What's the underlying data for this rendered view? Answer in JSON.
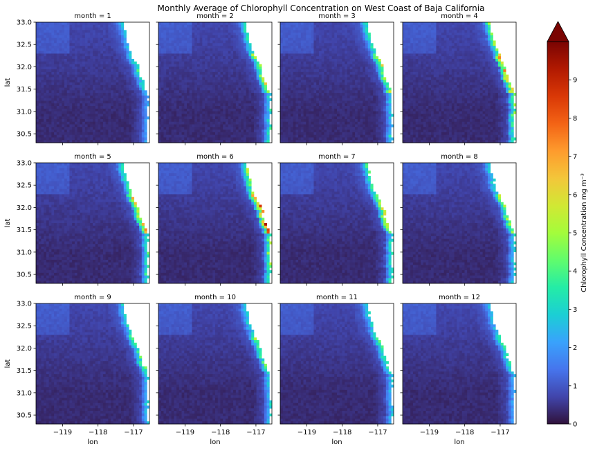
{
  "figure": {
    "title": "Monthly Average of Chlorophyll Concentration on West Coast of Baja California"
  },
  "colors": {
    "ocean_low": "#30123b",
    "land": "#ffffff",
    "colormap": [
      "#30123b",
      "#4145ab",
      "#4675ed",
      "#39a2fc",
      "#1bcfd4",
      "#24eca6",
      "#61fc6c",
      "#a4fc3b",
      "#d1e834",
      "#f3c63a",
      "#fe9b2d",
      "#f36315",
      "#d93806",
      "#b11901",
      "#7a0402"
    ]
  },
  "chart_data": {
    "type": "heatmap",
    "title": "Monthly Average of Chlorophyll Concentration on West Coast of Baja California",
    "xlabel": "lon",
    "ylabel": "lat",
    "xlim": [
      -119.75,
      -116.55
    ],
    "ylim": [
      30.3,
      33.0
    ],
    "x_ticks": [
      -119,
      -118,
      -117
    ],
    "x_tick_labels": [
      "−119",
      "−118",
      "−117"
    ],
    "y_ticks": [
      30.5,
      31.0,
      31.5,
      32.0,
      32.5,
      33.0
    ],
    "y_tick_labels": [
      "30.5",
      "31.0",
      "31.5",
      "32.0",
      "32.5",
      "33.0"
    ],
    "facet_titles": [
      "month = 1",
      "month = 2",
      "month = 3",
      "month = 4",
      "month = 5",
      "month = 6",
      "month = 7",
      "month = 8",
      "month = 9",
      "month = 10",
      "month = 11",
      "month = 12"
    ],
    "colorbar": {
      "label": "Chlorophyll Concentration mg m⁻³",
      "range": [
        0,
        10
      ],
      "extend": "max",
      "ticks": [
        0,
        1,
        2,
        3,
        4,
        5,
        6,
        7,
        8,
        9
      ],
      "tick_labels": [
        "0",
        "1",
        "2",
        "3",
        "4",
        "5",
        "6",
        "7",
        "8",
        "9"
      ]
    },
    "coastline": [
      [
        33.0,
        -117.3
      ],
      [
        32.8,
        -117.25
      ],
      [
        32.6,
        -117.18
      ],
      [
        32.4,
        -117.1
      ],
      [
        32.2,
        -117.0
      ],
      [
        32.0,
        -116.85
      ],
      [
        31.8,
        -116.8
      ],
      [
        31.6,
        -116.7
      ],
      [
        31.4,
        -116.6
      ]
    ],
    "monthly_peak_nearshore": [
      3.5,
      6.0,
      5.5,
      8.0,
      7.0,
      8.5,
      6.0,
      5.0,
      4.5,
      4.5,
      4.0,
      3.5
    ]
  }
}
